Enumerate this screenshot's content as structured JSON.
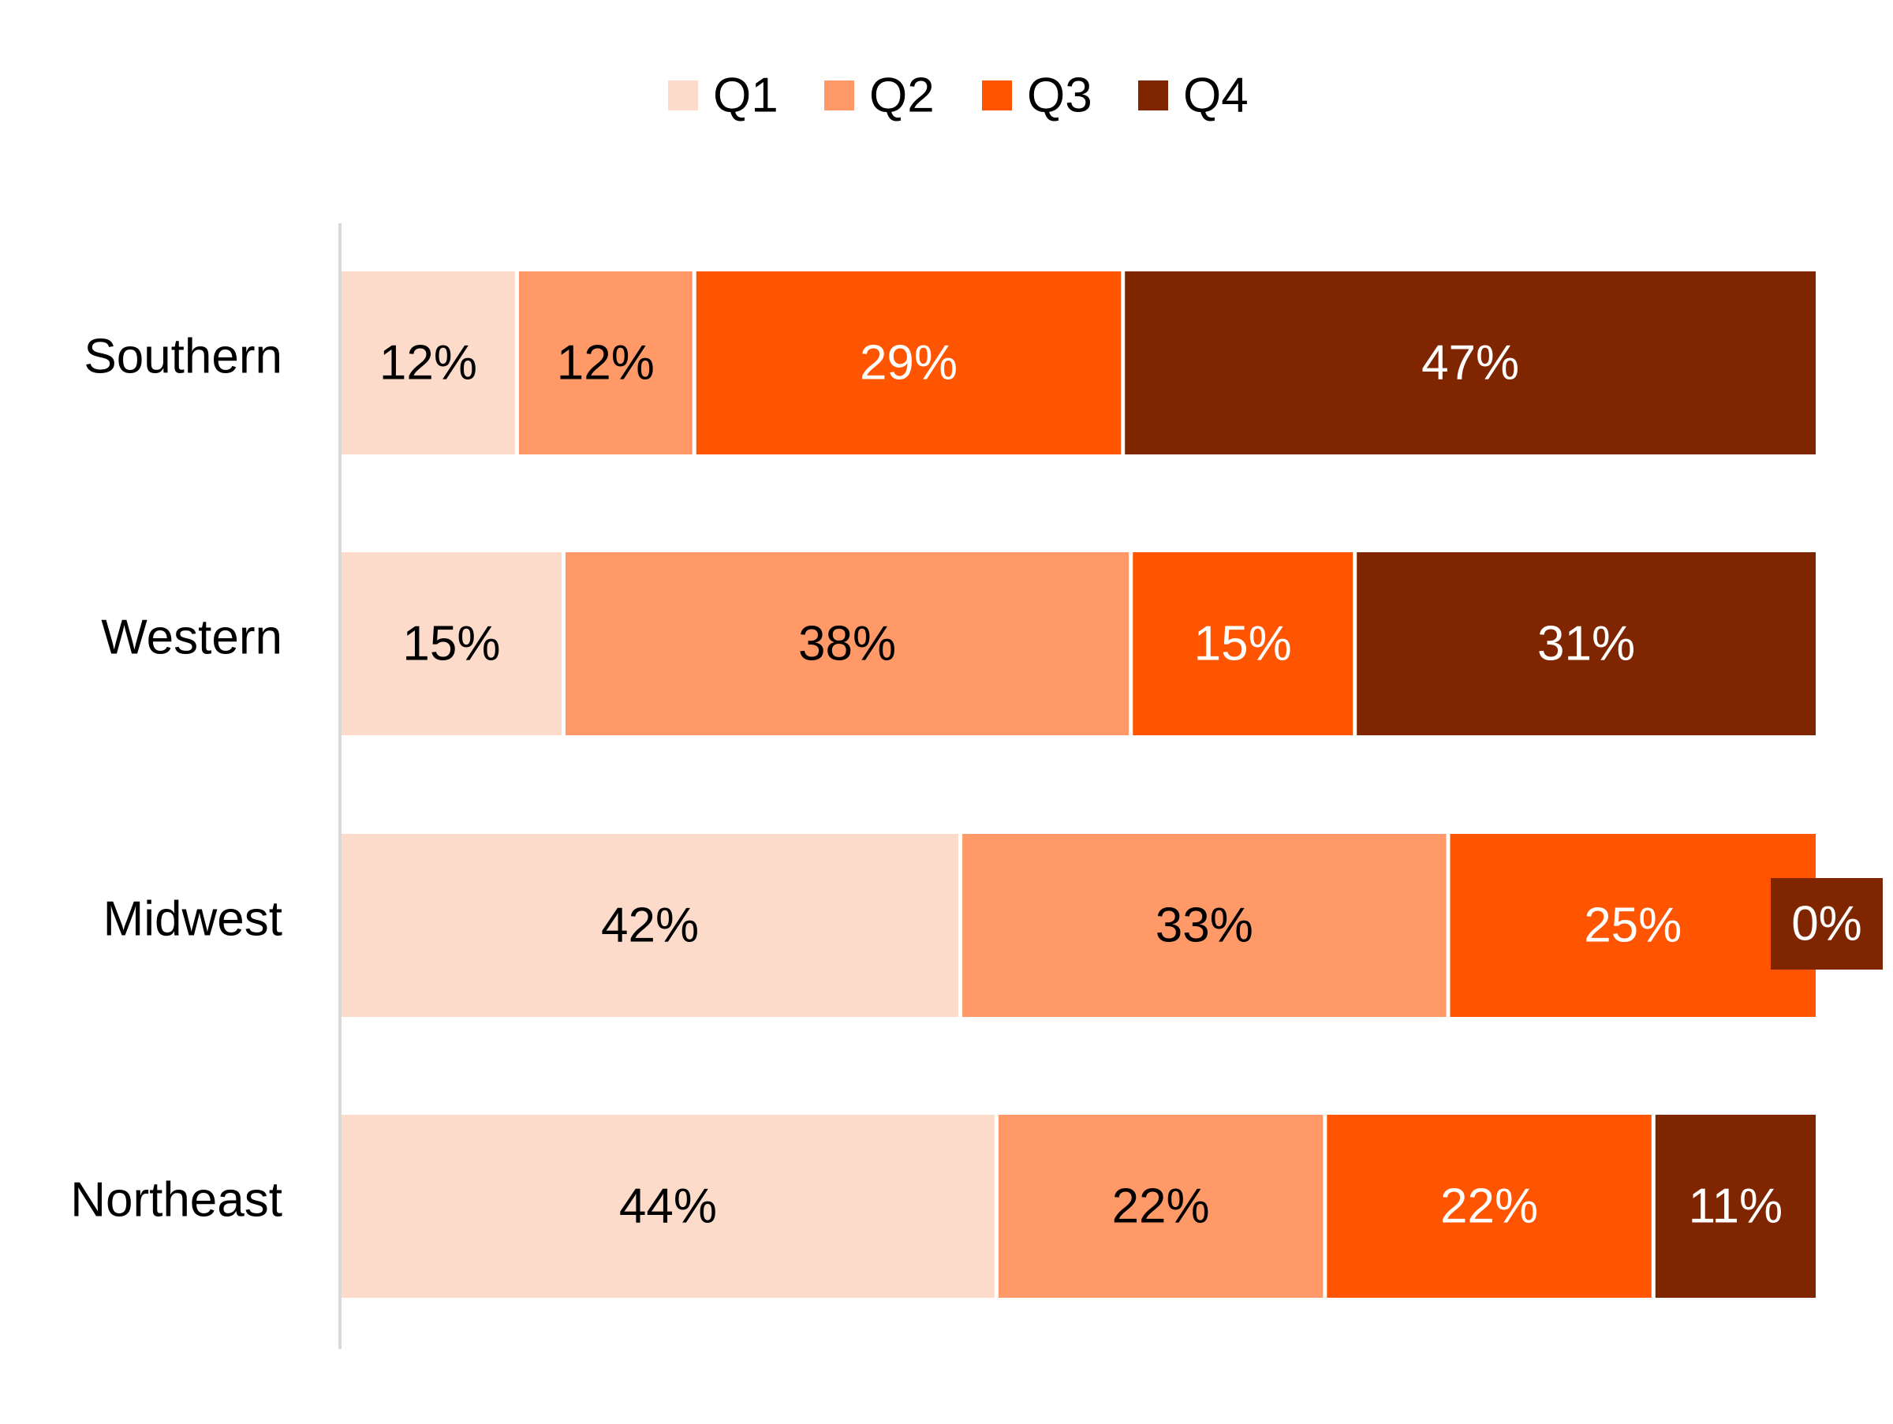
{
  "chart_data": {
    "type": "bar",
    "orientation": "horizontal",
    "stacked": true,
    "normalized": true,
    "title": "",
    "xlabel": "",
    "ylabel": "",
    "categories": [
      "Southern",
      "Western",
      "Midwest",
      "Northeast"
    ],
    "series": [
      {
        "name": "Q1",
        "color": "#FDDBCB",
        "values": [
          12,
          15,
          42,
          44
        ],
        "labels": [
          "12%",
          "15%",
          "42%",
          "44%"
        ]
      },
      {
        "name": "Q2",
        "color": "#FF9A68",
        "values": [
          12,
          38,
          33,
          22
        ],
        "labels": [
          "12%",
          "38%",
          "33%",
          "22%"
        ]
      },
      {
        "name": "Q3",
        "color": "#FF5400",
        "values": [
          29,
          15,
          25,
          22
        ],
        "labels": [
          "29%",
          "15%",
          "25%",
          "22%"
        ]
      },
      {
        "name": "Q4",
        "color": "#7F2600",
        "values": [
          47,
          31,
          0,
          11
        ],
        "labels": [
          "47%",
          "31%",
          "0%",
          "11%"
        ]
      }
    ],
    "label_colors": [
      "#000000",
      "#000000",
      "#ffffff",
      "#ffffff"
    ],
    "legend": {
      "position": "top-center"
    },
    "grid": false,
    "xlim": [
      0,
      100
    ]
  }
}
